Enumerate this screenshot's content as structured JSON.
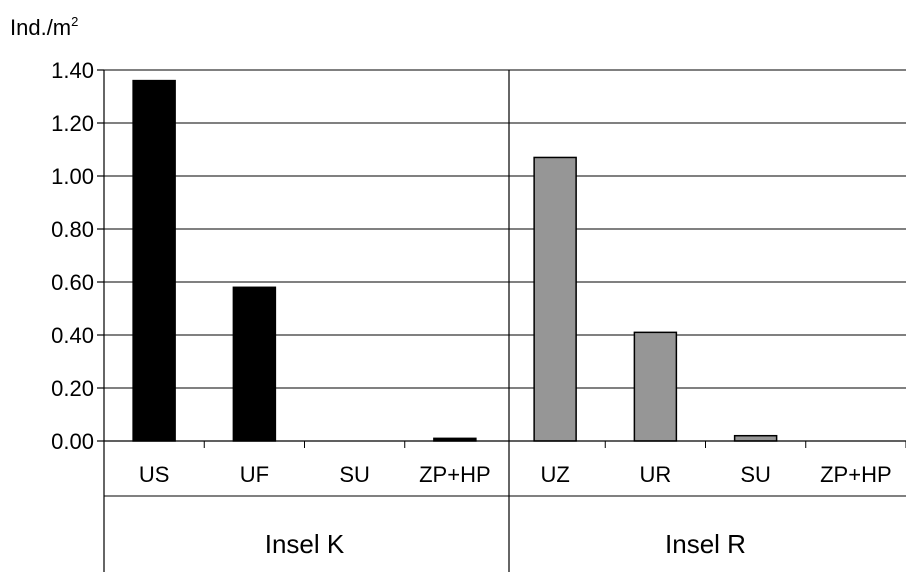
{
  "chart_data": {
    "type": "bar",
    "ylabel": "Ind./m",
    "ylabel_superscript": "2",
    "ylim": [
      0,
      1.4
    ],
    "yticks": [
      "0.00",
      "0.20",
      "0.40",
      "0.60",
      "0.80",
      "1.00",
      "1.20",
      "1.40"
    ],
    "grid": true,
    "groups": [
      {
        "name": "Insel K",
        "color": "#000000",
        "categories": [
          "US",
          "UF",
          "SU",
          "ZP+HP"
        ],
        "values": [
          1.36,
          0.58,
          0.0,
          0.01
        ]
      },
      {
        "name": "Insel R",
        "color": "#969696",
        "categories": [
          "UZ",
          "UR",
          "SU",
          "ZP+HP"
        ],
        "values": [
          1.07,
          0.41,
          0.02,
          0.0
        ]
      }
    ]
  }
}
